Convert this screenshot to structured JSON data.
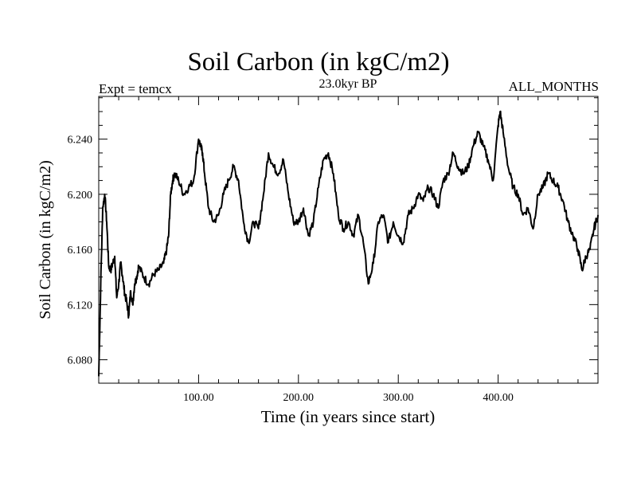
{
  "chart_data": {
    "type": "line",
    "title": "Soil Carbon (in kgC/m2)",
    "subtitle_left": "Expt = temcx",
    "subtitle_center": "23.0kyr BP",
    "subtitle_right": "ALL_MONTHS",
    "xlabel": "Time (in years since start)",
    "ylabel": "Soil Carbon (in kgC/m2)",
    "xlim": [
      0,
      500
    ],
    "ylim": [
      6.063,
      6.271
    ],
    "x_ticks": [
      100,
      200,
      300,
      400
    ],
    "x_tick_labels": [
      "100.00",
      "200.00",
      "300.00",
      "400.00"
    ],
    "y_ticks": [
      6.08,
      6.12,
      6.16,
      6.2,
      6.24
    ],
    "y_tick_labels": [
      "6.080",
      "6.120",
      "6.160",
      "6.200",
      "6.240"
    ],
    "legend": "none",
    "grid": false,
    "series": [
      {
        "name": "Soil Carbon",
        "x": [
          0,
          2,
          4,
          6,
          8,
          10,
          12,
          14,
          16,
          18,
          20,
          22,
          24,
          26,
          28,
          30,
          32,
          34,
          36,
          38,
          40,
          45,
          50,
          55,
          60,
          65,
          68,
          70,
          72,
          74,
          76,
          80,
          85,
          90,
          95,
          100,
          102,
          104,
          106,
          110,
          115,
          120,
          125,
          130,
          135,
          140,
          145,
          150,
          155,
          160,
          165,
          170,
          175,
          180,
          185,
          190,
          195,
          200,
          205,
          210,
          215,
          220,
          225,
          230,
          235,
          240,
          245,
          250,
          255,
          260,
          265,
          270,
          275,
          280,
          285,
          290,
          295,
          300,
          305,
          310,
          315,
          320,
          325,
          330,
          335,
          340,
          345,
          350,
          355,
          360,
          365,
          370,
          375,
          380,
          385,
          390,
          395,
          400,
          402,
          405,
          410,
          415,
          420,
          425,
          430,
          435,
          440,
          445,
          450,
          455,
          460,
          465,
          470,
          475,
          480,
          484,
          488,
          492,
          496,
          500
        ],
        "values": [
          6.068,
          6.135,
          6.19,
          6.2,
          6.18,
          6.148,
          6.145,
          6.15,
          6.155,
          6.125,
          6.135,
          6.15,
          6.14,
          6.128,
          6.122,
          6.112,
          6.13,
          6.12,
          6.135,
          6.14,
          6.148,
          6.14,
          6.135,
          6.142,
          6.145,
          6.15,
          6.16,
          6.17,
          6.2,
          6.21,
          6.215,
          6.21,
          6.2,
          6.205,
          6.21,
          6.24,
          6.235,
          6.23,
          6.215,
          6.19,
          6.18,
          6.185,
          6.2,
          6.21,
          6.22,
          6.21,
          6.18,
          6.165,
          6.18,
          6.175,
          6.2,
          6.23,
          6.22,
          6.215,
          6.225,
          6.2,
          6.18,
          6.18,
          6.19,
          6.17,
          6.18,
          6.205,
          6.225,
          6.23,
          6.215,
          6.185,
          6.175,
          6.18,
          6.17,
          6.185,
          6.165,
          6.135,
          6.15,
          6.18,
          6.185,
          6.165,
          6.18,
          6.17,
          6.165,
          6.185,
          6.19,
          6.2,
          6.195,
          6.205,
          6.2,
          6.19,
          6.21,
          6.215,
          6.23,
          6.22,
          6.215,
          6.22,
          6.235,
          6.245,
          6.235,
          6.225,
          6.21,
          6.25,
          6.26,
          6.245,
          6.22,
          6.205,
          6.2,
          6.185,
          6.19,
          6.175,
          6.2,
          6.205,
          6.215,
          6.21,
          6.205,
          6.195,
          6.18,
          6.17,
          6.16,
          6.145,
          6.155,
          6.16,
          6.175,
          6.185
        ]
      }
    ]
  }
}
